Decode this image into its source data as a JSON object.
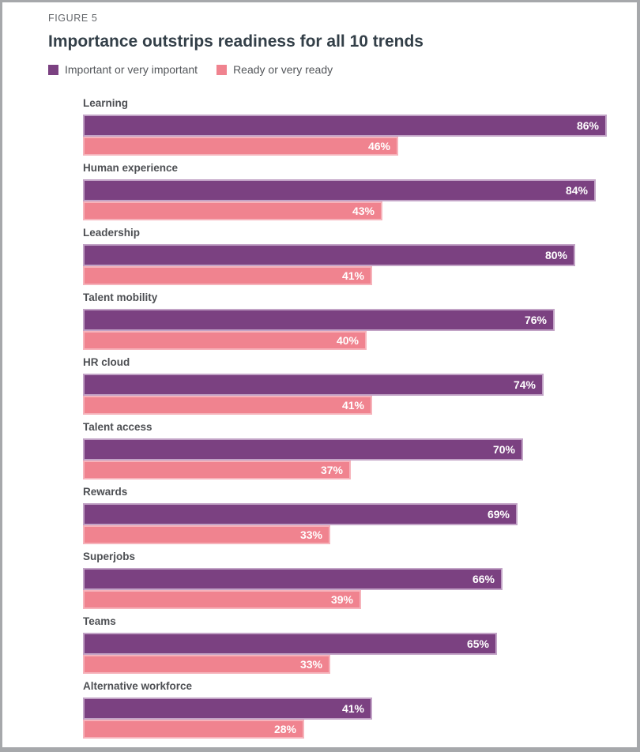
{
  "figure_label": "FIGURE 5",
  "title": "Importance outstrips readiness for all 10 trends",
  "legend": {
    "items": [
      {
        "label": "Important or very important",
        "color": "#7b4181"
      },
      {
        "label": "Ready or very ready",
        "color": "#f0838f"
      }
    ]
  },
  "colors": {
    "importance_bar": "#7b4181",
    "importance_bar_border": "#c2a3c6",
    "readiness_bar": "#f0838f",
    "readiness_bar_border": "#f6b3bb",
    "title_text": "#333f48",
    "label_text": "#4d4f53",
    "page_border": "#a6a8ab"
  },
  "chart_data": {
    "type": "bar",
    "orientation": "horizontal",
    "title": "Importance outstrips readiness for all 10 trends",
    "value_suffix": "%",
    "xlim": [
      0,
      100
    ],
    "grid": false,
    "legend_position": "top",
    "categories": [
      "Learning",
      "Human experience",
      "Leadership",
      "Talent mobility",
      "HR cloud",
      "Talent access",
      "Rewards",
      "Superjobs",
      "Teams",
      "Alternative workforce"
    ],
    "series": [
      {
        "name": "Important or very important",
        "color": "#7b4181",
        "values": [
          86,
          84,
          80,
          76,
          74,
          70,
          69,
          66,
          65,
          41
        ]
      },
      {
        "name": "Ready or very ready",
        "color": "#f0838f",
        "values": [
          46,
          43,
          41,
          40,
          41,
          37,
          33,
          39,
          33,
          28
        ]
      }
    ]
  }
}
